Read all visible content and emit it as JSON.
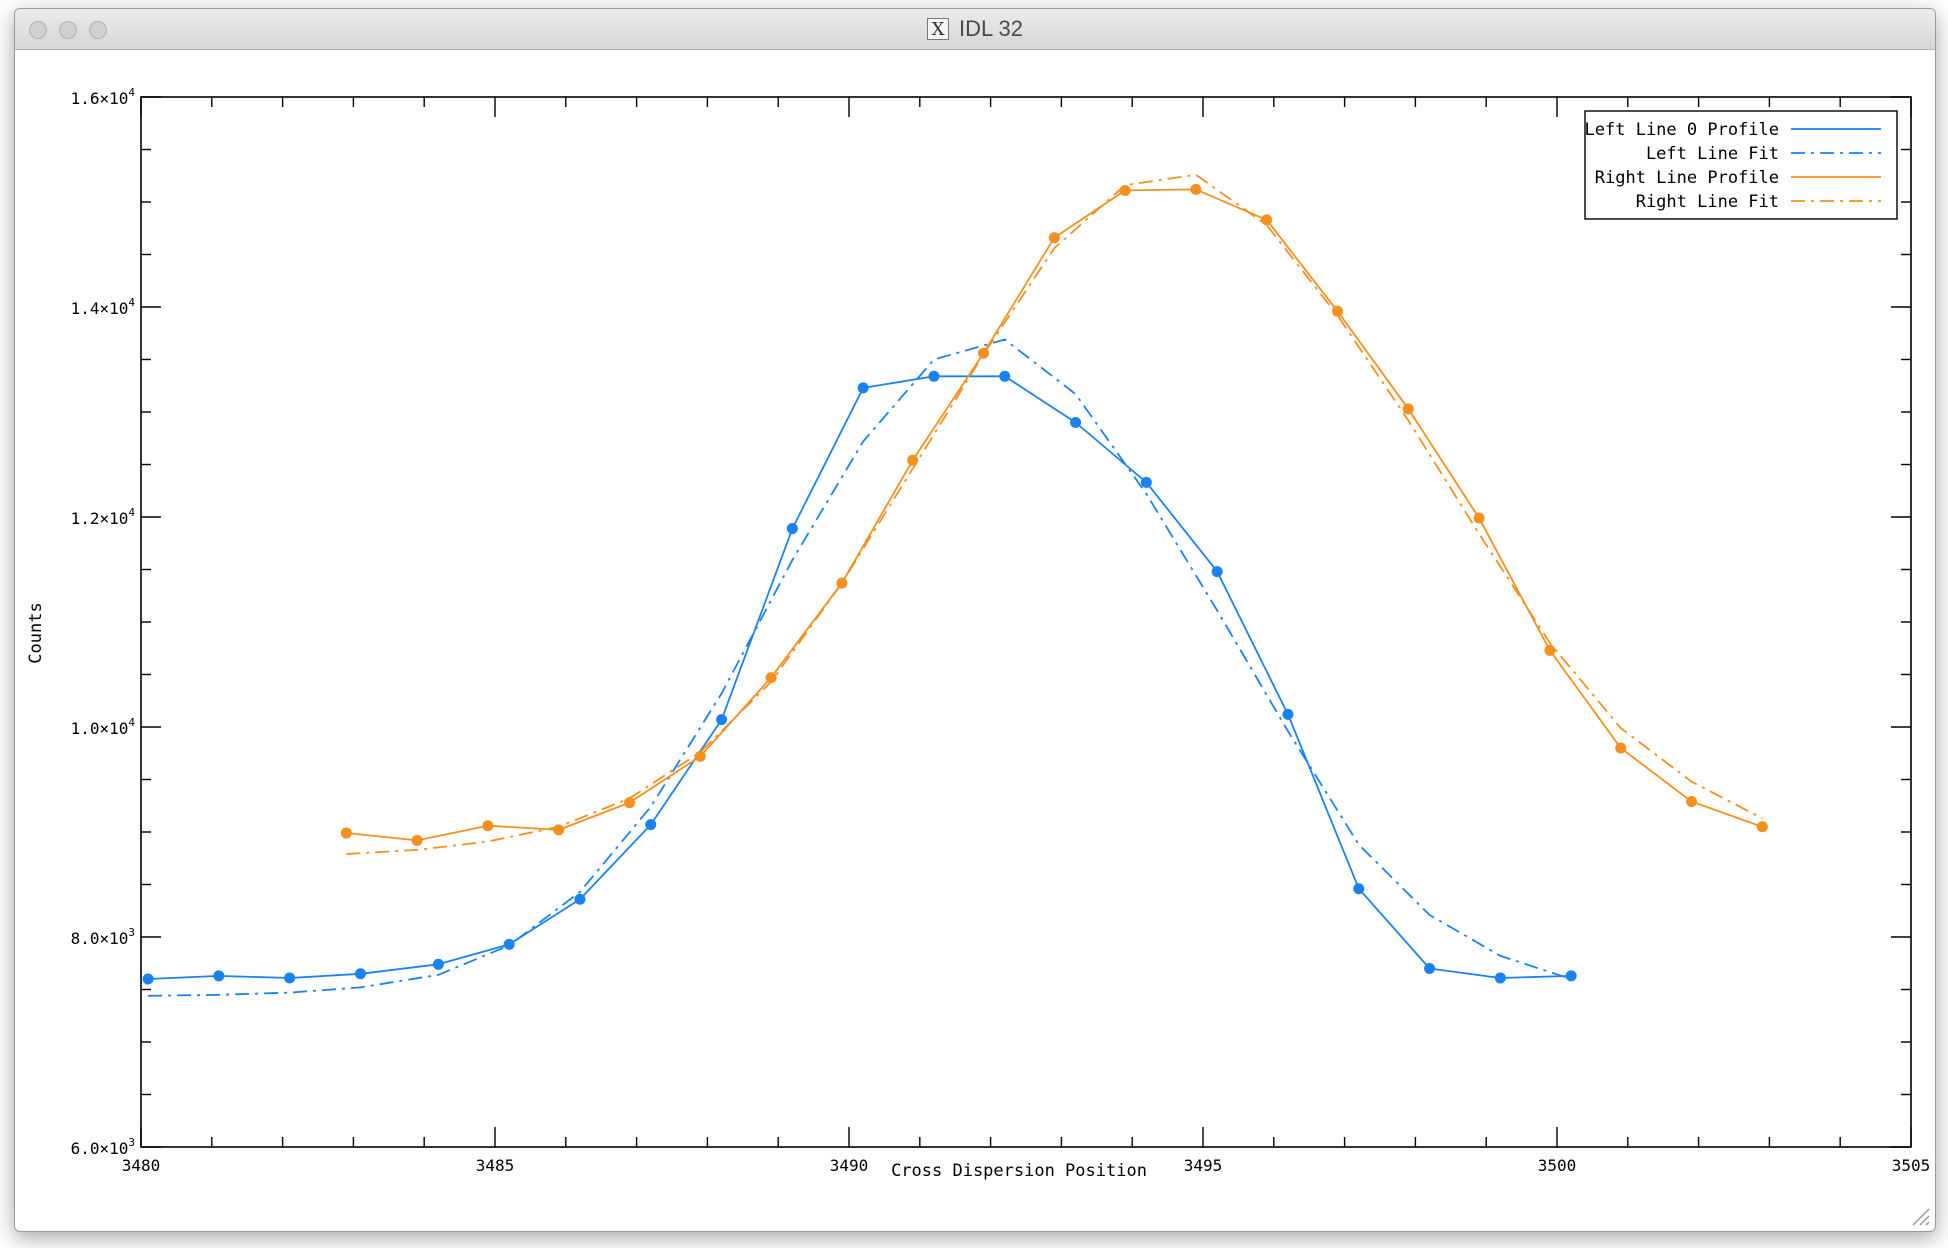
{
  "window": {
    "title": "IDL 32",
    "icon": "x11-icon"
  },
  "chart_data": {
    "type": "line",
    "title": "",
    "xlabel": "Cross Dispersion Position",
    "ylabel": "Counts",
    "xlim": [
      3480,
      3505
    ],
    "ylim": [
      6000,
      16000
    ],
    "x_ticks": [
      3480,
      3485,
      3490,
      3495,
      3500,
      3505
    ],
    "x_tick_labels": [
      "3480",
      "3485",
      "3490",
      "3495",
      "3500",
      "3505"
    ],
    "y_ticks": [
      6000,
      8000,
      10000,
      12000,
      14000,
      16000
    ],
    "y_tick_labels": [
      {
        "mantissa": "6.0",
        "exp": "3"
      },
      {
        "mantissa": "8.0",
        "exp": "3"
      },
      {
        "mantissa": "1.0",
        "exp": "4"
      },
      {
        "mantissa": "1.2",
        "exp": "4"
      },
      {
        "mantissa": "1.4",
        "exp": "4"
      },
      {
        "mantissa": "1.6",
        "exp": "4"
      }
    ],
    "grid": false,
    "legend_position": "top-right",
    "series": [
      {
        "name": "Left Line 0 Profile",
        "color": "#1a82f0",
        "dash": "solid",
        "markers": true,
        "x": [
          3480.1,
          3481.1,
          3482.1,
          3483.1,
          3484.2,
          3485.2,
          3486.2,
          3487.2,
          3488.2,
          3489.2,
          3490.2,
          3491.2,
          3492.2,
          3493.2,
          3494.2,
          3495.2,
          3496.2,
          3497.2,
          3498.2,
          3499.2,
          3500.2
        ],
        "y": [
          7600,
          7630,
          7610,
          7650,
          7740,
          7930,
          8360,
          9070,
          10070,
          11890,
          13230,
          13340,
          13340,
          12900,
          12330,
          11480,
          10120,
          8460,
          7700,
          7610,
          7630
        ]
      },
      {
        "name": "Left Line Fit",
        "color": "#1a82f0",
        "dash": "dashdot",
        "markers": false,
        "x": [
          3480.1,
          3481.1,
          3482.1,
          3483.1,
          3484.2,
          3485.2,
          3486.2,
          3487.2,
          3488.2,
          3489.2,
          3490.2,
          3491.2,
          3492.2,
          3493.2,
          3494.2,
          3495.2,
          3496.2,
          3497.2,
          3498.2,
          3499.2,
          3500.2
        ],
        "y": [
          7440,
          7450,
          7470,
          7520,
          7640,
          7920,
          8430,
          9240,
          10320,
          11590,
          12720,
          13500,
          13690,
          13170,
          12220,
          11110,
          9960,
          8880,
          8210,
          7820,
          7600
        ]
      },
      {
        "name": "Right Line Profile",
        "color": "#f5901e",
        "dash": "solid",
        "markers": true,
        "x": [
          3482.9,
          3483.9,
          3484.9,
          3485.9,
          3486.9,
          3487.9,
          3488.9,
          3489.9,
          3490.9,
          3491.9,
          3492.9,
          3493.9,
          3494.9,
          3495.9,
          3496.9,
          3497.9,
          3498.9,
          3499.9,
          3500.9,
          3501.9,
          3502.9
        ],
        "y": [
          8990,
          8920,
          9060,
          9020,
          9280,
          9720,
          10470,
          11370,
          12540,
          13560,
          14660,
          15110,
          15120,
          14830,
          13960,
          13030,
          11990,
          10730,
          9800,
          9290,
          9050
        ]
      },
      {
        "name": "Right Line Fit",
        "color": "#f5901e",
        "dash": "dashdot",
        "markers": false,
        "x": [
          3482.9,
          3483.9,
          3484.9,
          3485.9,
          3486.9,
          3487.9,
          3488.9,
          3489.9,
          3490.9,
          3491.9,
          3492.9,
          3493.9,
          3494.9,
          3495.9,
          3496.9,
          3497.9,
          3498.9,
          3499.9,
          3500.9,
          3501.9,
          3502.9
        ],
        "y": [
          8790,
          8830,
          8910,
          9050,
          9320,
          9760,
          10430,
          11370,
          12460,
          13550,
          14560,
          15160,
          15260,
          14780,
          13920,
          12920,
          11840,
          10800,
          9990,
          9480,
          9130
        ]
      }
    ]
  }
}
